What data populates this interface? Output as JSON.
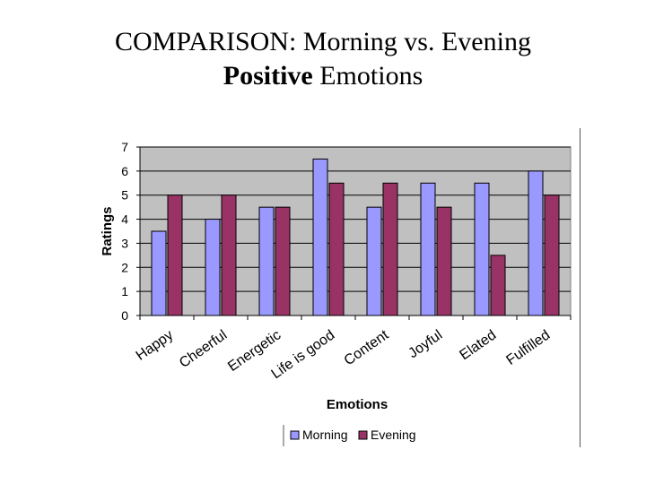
{
  "slide": {
    "title_line1": "COMPARISON: Morning vs. Evening",
    "title_line2_bold": "Positive",
    "title_line2_rest": " Emotions"
  },
  "chart_data": {
    "type": "bar",
    "title": "",
    "xlabel": "Emotions",
    "ylabel": "Ratings",
    "ylim": [
      0,
      7
    ],
    "yticks": [
      0,
      1,
      2,
      3,
      4,
      5,
      6,
      7
    ],
    "grid": true,
    "legend_position": "bottom",
    "categories": [
      "Happy",
      "Cheerful",
      "Energetic",
      "Life is good",
      "Content",
      "Joyful",
      "Elated",
      "Fulfilled"
    ],
    "series": [
      {
        "name": "Morning",
        "values": [
          3.5,
          4.0,
          4.5,
          6.5,
          4.5,
          5.5,
          5.5,
          6.0
        ],
        "color": "#9999ff"
      },
      {
        "name": "Evening",
        "values": [
          5.0,
          5.0,
          4.5,
          5.5,
          5.5,
          4.5,
          2.5,
          5.0
        ],
        "color": "#993366"
      }
    ],
    "plot_background": "#c0c0c0"
  }
}
